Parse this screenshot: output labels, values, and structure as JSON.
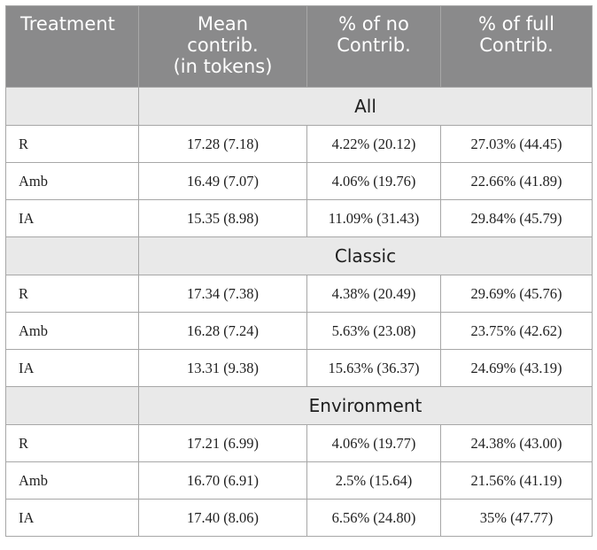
{
  "header": {
    "treatment": "Treatment",
    "mean_contrib": [
      "Mean",
      "contrib.",
      "(in tokens)"
    ],
    "no_contrib": [
      "% of no",
      "Contrib."
    ],
    "full_contrib": [
      "% of full",
      "Contrib."
    ]
  },
  "sections": [
    {
      "title": "All",
      "rows": [
        {
          "treatment": "R",
          "mean": "17.28 (7.18)",
          "no": "4.22% (20.12)",
          "full": "27.03% (44.45)"
        },
        {
          "treatment": "Amb",
          "mean": "16.49 (7.07)",
          "no": "4.06% (19.76)",
          "full": "22.66% (41.89)"
        },
        {
          "treatment": "IA",
          "mean": "15.35 (8.98)",
          "no": "11.09% (31.43)",
          "full": "29.84% (45.79)"
        }
      ]
    },
    {
      "title": "Classic",
      "rows": [
        {
          "treatment": "R",
          "mean": "17.34 (7.38)",
          "no": "4.38% (20.49)",
          "full": "29.69% (45.76)"
        },
        {
          "treatment": "Amb",
          "mean": "16.28 (7.24)",
          "no": "5.63% (23.08)",
          "full": "23.75% (42.62)"
        },
        {
          "treatment": "IA",
          "mean": "13.31 (9.38)",
          "no": "15.63% (36.37)",
          "full": "24.69% (43.19)"
        }
      ]
    },
    {
      "title": "Environment",
      "rows": [
        {
          "treatment": "R",
          "mean": "17.21 (6.99)",
          "no": "4.06% (19.77)",
          "full": "24.38% (43.00)"
        },
        {
          "treatment": "Amb",
          "mean": "16.70 (6.91)",
          "no": "2.5% (15.64)",
          "full": "21.56% (41.19)"
        },
        {
          "treatment": "IA",
          "mean": "17.40 (8.06)",
          "no": "6.56% (24.80)",
          "full": "35% (47.77)"
        }
      ]
    }
  ]
}
